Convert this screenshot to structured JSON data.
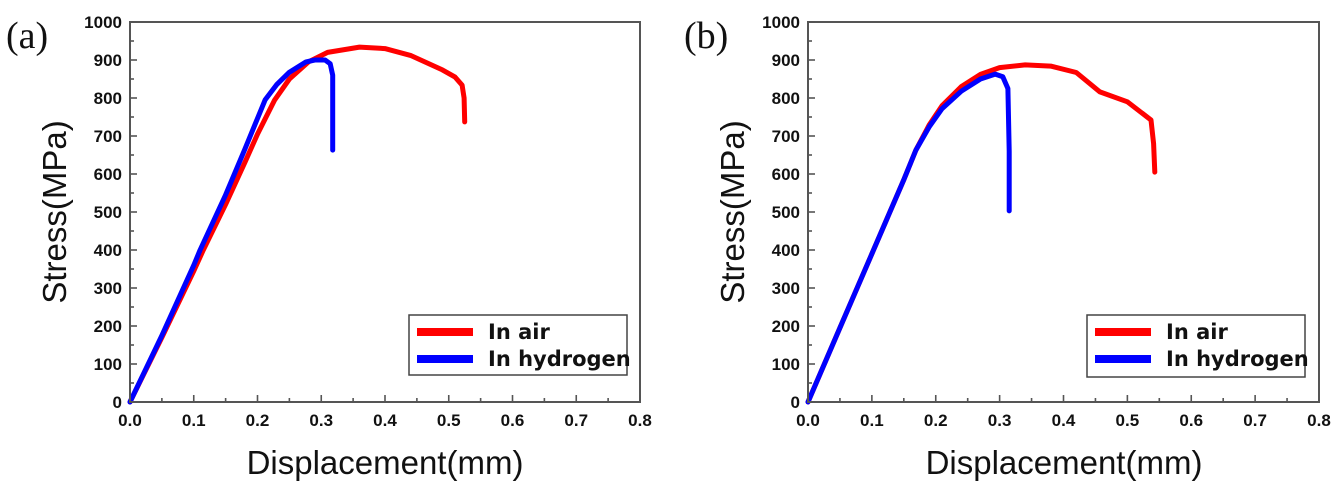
{
  "chart_data": [
    {
      "type": "line",
      "panel_label": "(a)",
      "title": "",
      "xlabel": "Displacement(mm)",
      "ylabel": "Stress(MPa)",
      "xlim": [
        0.0,
        0.8
      ],
      "ylim": [
        0,
        1000
      ],
      "x_ticks": [
        "0.0",
        "0.1",
        "0.2",
        "0.3",
        "0.4",
        "0.5",
        "0.6",
        "0.7",
        "0.8"
      ],
      "y_ticks": [
        "0",
        "100",
        "200",
        "300",
        "400",
        "500",
        "600",
        "700",
        "800",
        "900",
        "1000"
      ],
      "x_tick_values": [
        0.0,
        0.1,
        0.2,
        0.3,
        0.4,
        0.5,
        0.6,
        0.7,
        0.8
      ],
      "y_tick_values": [
        0,
        100,
        200,
        300,
        400,
        500,
        600,
        700,
        800,
        900,
        1000
      ],
      "grid": false,
      "legend_position": "bottom-right",
      "series": [
        {
          "name": "In air",
          "color": "#ff0000",
          "points": [
            [
              0.0,
              0
            ],
            [
              0.05,
              170
            ],
            [
              0.1,
              345
            ],
            [
              0.115,
              400
            ],
            [
              0.15,
              520
            ],
            [
              0.18,
              630
            ],
            [
              0.2,
              705
            ],
            [
              0.227,
              795
            ],
            [
              0.25,
              850
            ],
            [
              0.28,
              895
            ],
            [
              0.31,
              920
            ],
            [
              0.36,
              934
            ],
            [
              0.4,
              930
            ],
            [
              0.44,
              912
            ],
            [
              0.49,
              874
            ],
            [
              0.51,
              855
            ],
            [
              0.521,
              834
            ],
            [
              0.524,
              800
            ],
            [
              0.525,
              737
            ]
          ]
        },
        {
          "name": "In hydrogen",
          "color": "#0000ff",
          "points": [
            [
              0.0,
              0
            ],
            [
              0.05,
              175
            ],
            [
              0.1,
              360
            ],
            [
              0.11,
              400
            ],
            [
              0.15,
              545
            ],
            [
              0.18,
              665
            ],
            [
              0.212,
              795
            ],
            [
              0.23,
              835
            ],
            [
              0.25,
              868
            ],
            [
              0.276,
              895
            ],
            [
              0.29,
              900
            ],
            [
              0.306,
              900
            ],
            [
              0.314,
              890
            ],
            [
              0.318,
              860
            ],
            [
              0.318,
              663
            ]
          ]
        }
      ]
    },
    {
      "type": "line",
      "panel_label": "(b)",
      "title": "",
      "xlabel": "Displacement(mm)",
      "ylabel": "Stress(MPa)",
      "xlim": [
        0.0,
        0.8
      ],
      "ylim": [
        0,
        1000
      ],
      "x_ticks": [
        "0.0",
        "0.1",
        "0.2",
        "0.3",
        "0.4",
        "0.5",
        "0.6",
        "0.7",
        "0.8"
      ],
      "y_ticks": [
        "0",
        "100",
        "200",
        "300",
        "400",
        "500",
        "600",
        "700",
        "800",
        "900",
        "1000"
      ],
      "x_tick_values": [
        0.0,
        0.1,
        0.2,
        0.3,
        0.4,
        0.5,
        0.6,
        0.7,
        0.8
      ],
      "y_tick_values": [
        0,
        100,
        200,
        300,
        400,
        500,
        600,
        700,
        800,
        900,
        1000
      ],
      "grid": false,
      "legend_position": "bottom-right",
      "series": [
        {
          "name": "In air",
          "color": "#ff0000",
          "points": [
            [
              0.0,
              0
            ],
            [
              0.05,
              195
            ],
            [
              0.1,
              390
            ],
            [
              0.15,
              585
            ],
            [
              0.169,
              663
            ],
            [
              0.19,
              730
            ],
            [
              0.21,
              780
            ],
            [
              0.24,
              830
            ],
            [
              0.27,
              862
            ],
            [
              0.3,
              880
            ],
            [
              0.34,
              887
            ],
            [
              0.38,
              884
            ],
            [
              0.42,
              867
            ],
            [
              0.457,
              816
            ],
            [
              0.5,
              790
            ],
            [
              0.537,
              742
            ],
            [
              0.541,
              680
            ],
            [
              0.543,
              605
            ]
          ]
        },
        {
          "name": "In hydrogen",
          "color": "#0000ff",
          "points": [
            [
              0.0,
              0
            ],
            [
              0.05,
              195
            ],
            [
              0.1,
              390
            ],
            [
              0.15,
              585
            ],
            [
              0.169,
              663
            ],
            [
              0.19,
              725
            ],
            [
              0.21,
              772
            ],
            [
              0.24,
              818
            ],
            [
              0.27,
              850
            ],
            [
              0.293,
              863
            ],
            [
              0.305,
              856
            ],
            [
              0.313,
              825
            ],
            [
              0.315,
              660
            ],
            [
              0.315,
              503
            ]
          ]
        }
      ]
    }
  ]
}
